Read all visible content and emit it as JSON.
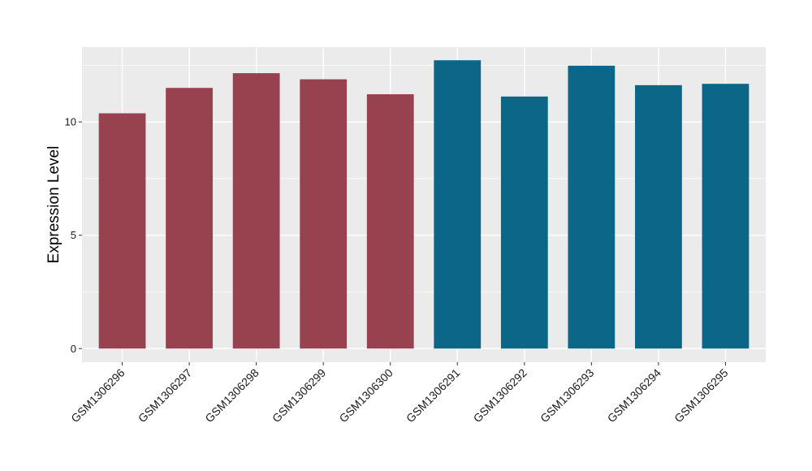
{
  "chart_data": {
    "type": "bar",
    "title": "",
    "xlabel": "",
    "ylabel": "Expression Level",
    "ylim": [
      -0.6,
      13.3
    ],
    "yticks": [
      0,
      5,
      10
    ],
    "grid": true,
    "legend": "none",
    "categories": [
      "GSM1306296",
      "GSM1306297",
      "GSM1306298",
      "GSM1306299",
      "GSM1306300",
      "GSM1306291",
      "GSM1306292",
      "GSM1306293",
      "GSM1306294",
      "GSM1306295"
    ],
    "values": [
      10.38,
      11.5,
      12.15,
      11.88,
      11.22,
      12.72,
      11.12,
      12.48,
      11.62,
      11.68
    ],
    "bar_colors": [
      "#99424f",
      "#99424f",
      "#99424f",
      "#99424f",
      "#99424f",
      "#0b6688",
      "#0b6688",
      "#0b6688",
      "#0b6688",
      "#0b6688"
    ],
    "panel_color": "#ebebeb",
    "grid_color": "#ffffff"
  }
}
